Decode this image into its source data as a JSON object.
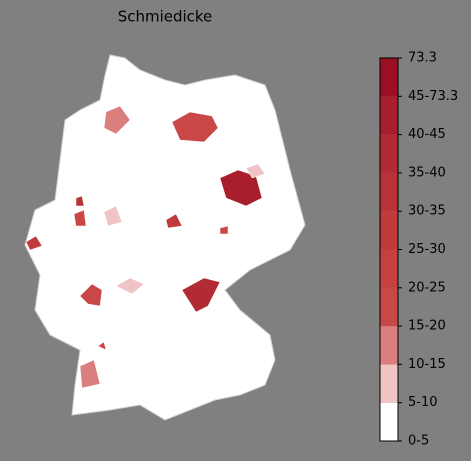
{
  "title": "Schmiedicke",
  "colorbar": {
    "labels": [
      "0-5",
      "5-10",
      "10-15",
      "15-20",
      "20-25",
      "25-30",
      "30-35",
      "35-40",
      "40-45",
      "45-73.3",
      "73.3"
    ],
    "colors": [
      "#ffffff",
      "#f0c4c4",
      "#da7e7e",
      "#c94747",
      "#c6403f",
      "#c03a3c",
      "#b93238",
      "#b22a33",
      "#a91e2d",
      "#9c0f24"
    ]
  }
}
